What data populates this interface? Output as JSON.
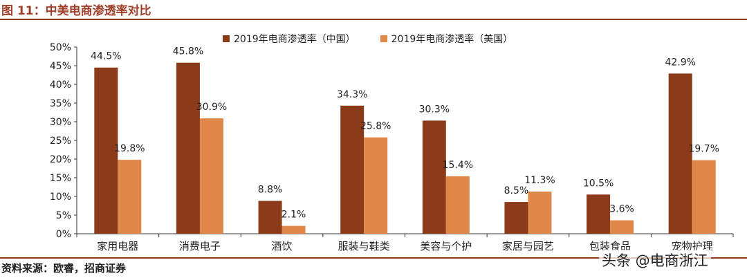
{
  "figure": {
    "title": "图 11：中美电商渗透率对比",
    "source": "资料来源：欧睿，招商证券",
    "watermark": "头条 @电商浙江"
  },
  "colors": {
    "china": "#8b3a1a",
    "us": "#e0884a",
    "rule": "#8b3a1a",
    "title": "#a0402a"
  },
  "chart_data": {
    "type": "bar",
    "categories": [
      "家用电器",
      "消费电子",
      "酒饮",
      "服装与鞋类",
      "美容与个护",
      "家居与园艺",
      "包装食品",
      "宠物护理"
    ],
    "series": [
      {
        "name": "2019年电商渗透率（中国）",
        "values": [
          44.5,
          45.8,
          8.8,
          34.3,
          30.3,
          8.5,
          10.5,
          42.9
        ]
      },
      {
        "name": "2019年电商渗透率（美国）",
        "values": [
          19.8,
          30.9,
          2.1,
          25.8,
          15.4,
          11.3,
          3.6,
          19.7
        ]
      }
    ],
    "data_labels": [
      [
        "44.5%",
        "45.8%",
        "8.8%",
        "34.3%",
        "30.3%",
        "8.5%",
        "10.5%",
        "42.9%"
      ],
      [
        "19.8%",
        "30.9%",
        "2.1%",
        "25.8%",
        "15.4%",
        "11.3%",
        "3.6%",
        "19.7%"
      ]
    ],
    "y_ticks": [
      "0%",
      "5%",
      "10%",
      "15%",
      "20%",
      "25%",
      "30%",
      "35%",
      "40%",
      "45%",
      "50%"
    ],
    "ylim": [
      0,
      50
    ],
    "legend_position": "top-center",
    "grid": false
  }
}
